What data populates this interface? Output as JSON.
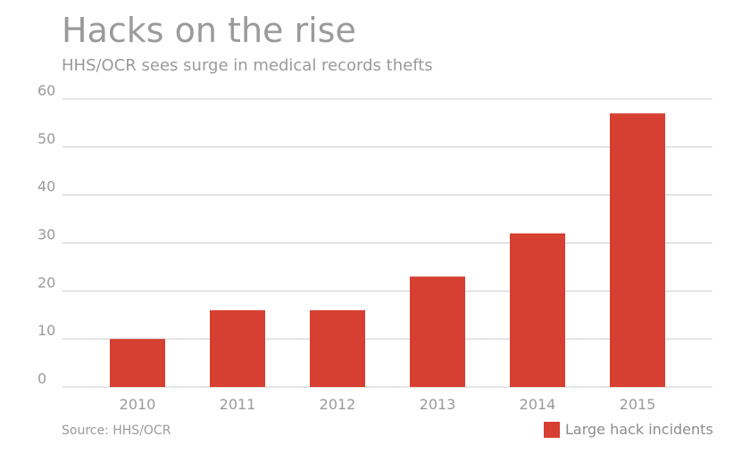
{
  "chart_data": {
    "type": "bar",
    "title": "Hacks on the rise",
    "subtitle": "HHS/OCR sees surge in medical records thefts",
    "categories": [
      "2010",
      "2011",
      "2012",
      "2013",
      "2014",
      "2015"
    ],
    "series": [
      {
        "name": "Large hack incidents",
        "values": [
          10,
          16,
          16,
          23,
          32,
          57
        ],
        "color": "#d63f31"
      }
    ],
    "ylim": [
      0,
      60
    ],
    "yticks": [
      0,
      10,
      20,
      30,
      40,
      50,
      60
    ],
    "xlabel": "",
    "ylabel": "",
    "grid": true,
    "legend": "bottom-right",
    "source": "Source: HHS/OCR"
  }
}
